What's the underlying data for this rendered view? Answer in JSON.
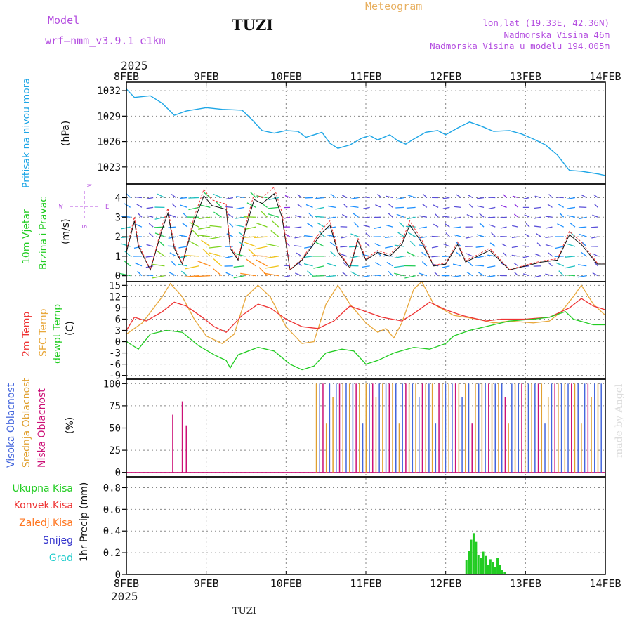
{
  "header": {
    "model_label": "Model",
    "model_name": "wrf–nmm_v3.9.1  e1km",
    "station": "TUZI",
    "meteogram": "Meteogram",
    "lonlat": "lon,lat (19.33E, 42.36N)",
    "elevation": "Nadmorska Visina 46m",
    "model_elevation": "Nadmorska Visina u modelu 194.005m",
    "year": "2025",
    "footer_station": "TUZI",
    "credit": "made by Angel"
  },
  "colors": {
    "pressure": "#1ea6e6",
    "temp2m": "#ee3333",
    "sfc": "#e8a83c",
    "dewpt": "#22cc22",
    "high_cloud": "#4466dd",
    "mid_cloud": "#e0a030",
    "low_cloud": "#cc1177",
    "total_precip": "#22cc22",
    "conv_precip": "#ee3333",
    "frz_precip": "#ff7722",
    "snow": "#3333cc",
    "graupel": "#22cccc",
    "axis_label_purple": "#b44ee0"
  },
  "x_axis": {
    "labels": [
      "8FEB",
      "9FEB",
      "10FEB",
      "11FEB",
      "12FEB",
      "13FEB",
      "14FEB"
    ]
  },
  "panels": {
    "pressure": {
      "label": "Pritisak na nivou mora",
      "unit": "(hPa)",
      "ticks": [
        "1032",
        "1029",
        "1026",
        "1023"
      ]
    },
    "wind": {
      "label1": "10m Vjetar",
      "label2": "Brzina i Pravac",
      "unit": "(m/s)",
      "ticks": [
        "4",
        "3",
        "2",
        "1",
        "0"
      ],
      "compass": {
        "n": "N",
        "s": "S",
        "w": "W",
        "e": "E"
      }
    },
    "temp": {
      "label1": "2m Temp",
      "label2": "SFC Temp",
      "label3": "dewpt Temp",
      "unit": "(C)",
      "ticks": [
        "15",
        "12",
        "9",
        "6",
        "3",
        "0",
        "-3",
        "-6",
        "-9"
      ]
    },
    "cloud": {
      "label1": "Visoka Oblacnost",
      "label2": "Srednja Oblacnost",
      "label3": "Niska Oblacnost",
      "unit": "(%)",
      "ticks": [
        "100",
        "75",
        "50",
        "25",
        "0"
      ]
    },
    "precip": {
      "unit": "1hr Precip (mm)",
      "ticks": [
        "0.8",
        "0.6",
        "0.4",
        "0.2",
        "0"
      ],
      "legend": [
        "Ukupna Kisa",
        "Konvek.Kisa",
        "Zaledj.Kisa",
        "Snijeg",
        "Grad"
      ]
    }
  },
  "chart_data": {
    "type": "line",
    "x": [
      "8FEB",
      "9FEB",
      "10FEB",
      "11FEB",
      "12FEB",
      "13FEB",
      "14FEB"
    ],
    "series": [
      {
        "name": "Pritisak na nivou mora",
        "unit": "hPa",
        "ylim": [
          1021,
          1033
        ],
        "points": [
          [
            0,
            1032.2
          ],
          [
            0.1,
            1031.2
          ],
          [
            0.3,
            1031.4
          ],
          [
            0.45,
            1030.5
          ],
          [
            0.6,
            1029.1
          ],
          [
            0.75,
            1029.6
          ],
          [
            1.0,
            1030.0
          ],
          [
            1.2,
            1029.8
          ],
          [
            1.45,
            1029.7
          ],
          [
            1.55,
            1028.8
          ],
          [
            1.7,
            1027.3
          ],
          [
            1.85,
            1027.0
          ],
          [
            2.0,
            1027.3
          ],
          [
            2.15,
            1027.2
          ],
          [
            2.25,
            1026.5
          ],
          [
            2.35,
            1026.8
          ],
          [
            2.45,
            1027.1
          ],
          [
            2.55,
            1025.8
          ],
          [
            2.65,
            1025.2
          ],
          [
            2.8,
            1025.6
          ],
          [
            2.95,
            1026.4
          ],
          [
            3.05,
            1026.7
          ],
          [
            3.15,
            1026.2
          ],
          [
            3.3,
            1026.8
          ],
          [
            3.4,
            1026.1
          ],
          [
            3.5,
            1025.7
          ],
          [
            3.6,
            1026.3
          ],
          [
            3.75,
            1027.1
          ],
          [
            3.9,
            1027.3
          ],
          [
            4.0,
            1026.8
          ],
          [
            4.15,
            1027.6
          ],
          [
            4.3,
            1028.3
          ],
          [
            4.45,
            1027.8
          ],
          [
            4.6,
            1027.2
          ],
          [
            4.8,
            1027.3
          ],
          [
            4.95,
            1026.9
          ],
          [
            5.1,
            1026.3
          ],
          [
            5.25,
            1025.6
          ],
          [
            5.4,
            1024.4
          ],
          [
            5.55,
            1022.6
          ],
          [
            5.7,
            1022.5
          ],
          [
            5.9,
            1022.2
          ],
          [
            6.0,
            1022.0
          ]
        ]
      },
      {
        "name": "2m Temp",
        "unit": "C",
        "ylim": [
          -10,
          16
        ],
        "points": [
          [
            0,
            3
          ],
          [
            0.1,
            6.5
          ],
          [
            0.25,
            5.5
          ],
          [
            0.45,
            8
          ],
          [
            0.6,
            10.5
          ],
          [
            0.75,
            9.5
          ],
          [
            0.95,
            6.5
          ],
          [
            1.1,
            4
          ],
          [
            1.25,
            2.5
          ],
          [
            1.45,
            7
          ],
          [
            1.65,
            10
          ],
          [
            1.8,
            9
          ],
          [
            2.0,
            6
          ],
          [
            2.2,
            4
          ],
          [
            2.4,
            3.5
          ],
          [
            2.6,
            5.5
          ],
          [
            2.8,
            9.5
          ],
          [
            3.0,
            8
          ],
          [
            3.2,
            6.5
          ],
          [
            3.45,
            5.5
          ],
          [
            3.6,
            7.5
          ],
          [
            3.8,
            10.5
          ],
          [
            4.0,
            8.5
          ],
          [
            4.2,
            7
          ],
          [
            4.5,
            5.5
          ],
          [
            4.7,
            6
          ],
          [
            5.0,
            6
          ],
          [
            5.3,
            6.5
          ],
          [
            5.55,
            9
          ],
          [
            5.7,
            11.5
          ],
          [
            5.85,
            9.5
          ],
          [
            6.0,
            8.5
          ]
        ]
      },
      {
        "name": "SFC Temp",
        "unit": "C",
        "ylim": [
          -10,
          16
        ],
        "points": [
          [
            0,
            2
          ],
          [
            0.2,
            5
          ],
          [
            0.45,
            12
          ],
          [
            0.55,
            15.5
          ],
          [
            0.7,
            12
          ],
          [
            0.85,
            6
          ],
          [
            1.0,
            1.5
          ],
          [
            1.2,
            -0.5
          ],
          [
            1.35,
            2
          ],
          [
            1.5,
            12
          ],
          [
            1.65,
            15
          ],
          [
            1.8,
            12
          ],
          [
            2.0,
            4
          ],
          [
            2.2,
            -0.5
          ],
          [
            2.35,
            0
          ],
          [
            2.5,
            10
          ],
          [
            2.65,
            15
          ],
          [
            2.8,
            10
          ],
          [
            3.0,
            5
          ],
          [
            3.15,
            2.5
          ],
          [
            3.25,
            3.5
          ],
          [
            3.35,
            1
          ],
          [
            3.45,
            5
          ],
          [
            3.6,
            14
          ],
          [
            3.7,
            16
          ],
          [
            3.85,
            10
          ],
          [
            4.1,
            7
          ],
          [
            4.4,
            6
          ],
          [
            4.6,
            5
          ],
          [
            4.8,
            5.5
          ],
          [
            5.1,
            5
          ],
          [
            5.3,
            5.5
          ],
          [
            5.45,
            8
          ],
          [
            5.6,
            12
          ],
          [
            5.7,
            15
          ],
          [
            5.85,
            10
          ],
          [
            6.0,
            7
          ]
        ]
      },
      {
        "name": "dewpt Temp",
        "unit": "C",
        "ylim": [
          -10,
          16
        ],
        "points": [
          [
            0,
            0
          ],
          [
            0.15,
            -2
          ],
          [
            0.3,
            2
          ],
          [
            0.5,
            3
          ],
          [
            0.7,
            2.5
          ],
          [
            0.9,
            -1
          ],
          [
            1.1,
            -3.5
          ],
          [
            1.25,
            -5
          ],
          [
            1.3,
            -7
          ],
          [
            1.4,
            -3.5
          ],
          [
            1.65,
            -1.5
          ],
          [
            1.85,
            -2.5
          ],
          [
            2.05,
            -6
          ],
          [
            2.2,
            -7.5
          ],
          [
            2.35,
            -6.5
          ],
          [
            2.5,
            -3
          ],
          [
            2.7,
            -2
          ],
          [
            2.85,
            -2.5
          ],
          [
            3.0,
            -6
          ],
          [
            3.15,
            -5
          ],
          [
            3.35,
            -3
          ],
          [
            3.6,
            -1.5
          ],
          [
            3.8,
            -2
          ],
          [
            4.0,
            -0.5
          ],
          [
            4.1,
            1.5
          ],
          [
            4.3,
            3
          ],
          [
            4.6,
            4.5
          ],
          [
            4.8,
            5.5
          ],
          [
            5.1,
            6
          ],
          [
            5.3,
            6.5
          ],
          [
            5.5,
            8
          ],
          [
            5.6,
            6
          ],
          [
            5.85,
            4.5
          ],
          [
            6.0,
            4.5
          ]
        ]
      },
      {
        "name": "10m Vjetar",
        "unit": "m/s",
        "ylim": [
          -0.3,
          4.7
        ],
        "points": [
          [
            0,
            1.2
          ],
          [
            0.1,
            2.8
          ],
          [
            0.15,
            1.5
          ],
          [
            0.3,
            0.3
          ],
          [
            0.45,
            2.4
          ],
          [
            0.52,
            3.2
          ],
          [
            0.6,
            1.4
          ],
          [
            0.7,
            0.6
          ],
          [
            0.85,
            2.8
          ],
          [
            0.97,
            4.1
          ],
          [
            1.07,
            3.6
          ],
          [
            1.25,
            3.4
          ],
          [
            1.3,
            1.4
          ],
          [
            1.4,
            0.8
          ],
          [
            1.5,
            2.5
          ],
          [
            1.6,
            3.9
          ],
          [
            1.7,
            3.7
          ],
          [
            1.85,
            4.2
          ],
          [
            1.95,
            3.0
          ],
          [
            2.05,
            0.3
          ],
          [
            2.2,
            0.8
          ],
          [
            2.45,
            2.2
          ],
          [
            2.55,
            2.6
          ],
          [
            2.65,
            1.2
          ],
          [
            2.8,
            0.4
          ],
          [
            2.9,
            1.8
          ],
          [
            3.0,
            0.8
          ],
          [
            3.15,
            1.2
          ],
          [
            3.3,
            1.0
          ],
          [
            3.45,
            1.6
          ],
          [
            3.55,
            2.6
          ],
          [
            3.7,
            1.7
          ],
          [
            3.85,
            0.5
          ],
          [
            4.0,
            0.6
          ],
          [
            4.15,
            1.6
          ],
          [
            4.25,
            0.7
          ],
          [
            4.4,
            1.0
          ],
          [
            4.55,
            1.3
          ],
          [
            4.8,
            0.3
          ],
          [
            5.0,
            0.5
          ],
          [
            5.2,
            0.7
          ],
          [
            5.4,
            0.8
          ],
          [
            5.55,
            2.1
          ],
          [
            5.7,
            1.6
          ],
          [
            5.9,
            0.6
          ],
          [
            6.0,
            0.6
          ]
        ]
      },
      {
        "name": "Ukupna Kisa",
        "unit": "mm",
        "ylim": [
          0,
          0.9
        ],
        "points": [
          [
            4.26,
            0.13
          ],
          [
            4.29,
            0.22
          ],
          [
            4.32,
            0.32
          ],
          [
            4.35,
            0.38
          ],
          [
            4.38,
            0.3
          ],
          [
            4.41,
            0.18
          ],
          [
            4.44,
            0.15
          ],
          [
            4.47,
            0.21
          ],
          [
            4.5,
            0.17
          ],
          [
            4.53,
            0.09
          ],
          [
            4.56,
            0.14
          ],
          [
            4.59,
            0.11
          ],
          [
            4.62,
            0.07
          ],
          [
            4.65,
            0.15
          ],
          [
            4.68,
            0.09
          ],
          [
            4.71,
            0.04
          ],
          [
            4.74,
            0.02
          ]
        ]
      }
    ]
  }
}
